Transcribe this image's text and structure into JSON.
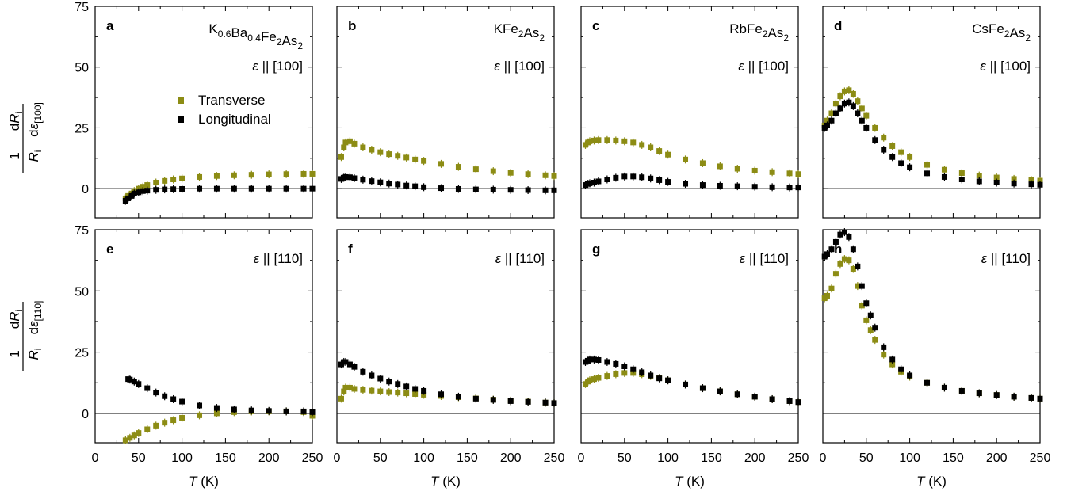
{
  "figure": {
    "ylabel_top": "1/R_i dR_i/dε_[100]",
    "ylabel_bottom": "1/R_i dR_i/dε_[110]",
    "xlabel": "T (K)",
    "legend": [
      "Transverse",
      "Longitudinal"
    ],
    "colors": {
      "transverse": "#8c8c14",
      "longitudinal": "#000000"
    }
  },
  "chart_data": [
    {
      "type": "scatter",
      "panel": "a",
      "compound": "K0.6Ba0.4Fe2As2",
      "strain": "ε || [100]",
      "xlim": [
        0,
        250
      ],
      "ylim": [
        -12,
        75
      ],
      "series": [
        {
          "name": "Transverse",
          "x": [
            35,
            38,
            42,
            45,
            50,
            55,
            60,
            70,
            80,
            90,
            100,
            120,
            140,
            160,
            180,
            200,
            220,
            240,
            250
          ],
          "y": [
            -4,
            -3,
            -2,
            -1,
            0,
            0.8,
            1.5,
            2.5,
            3.2,
            3.8,
            4.2,
            4.8,
            5.2,
            5.5,
            5.7,
            5.9,
            6,
            6.1,
            6.1
          ]
        },
        {
          "name": "Longitudinal",
          "x": [
            35,
            38,
            42,
            45,
            50,
            55,
            60,
            70,
            80,
            90,
            100,
            120,
            140,
            160,
            180,
            200,
            220,
            240,
            250
          ],
          "y": [
            -5,
            -4,
            -3,
            -2,
            -1.5,
            -1,
            -0.8,
            -0.5,
            -0.3,
            -0.2,
            -0.1,
            0,
            0,
            0,
            0,
            0,
            0,
            0,
            0
          ]
        }
      ]
    },
    {
      "type": "scatter",
      "panel": "b",
      "compound": "KFe2As2",
      "strain": "ε || [100]",
      "xlim": [
        0,
        250
      ],
      "ylim": [
        -12,
        75
      ],
      "series": [
        {
          "name": "Transverse",
          "x": [
            5,
            8,
            10,
            15,
            20,
            30,
            40,
            50,
            60,
            70,
            80,
            90,
            100,
            120,
            140,
            160,
            180,
            200,
            220,
            240,
            250
          ],
          "y": [
            13,
            17,
            19,
            19.5,
            18.5,
            17,
            16,
            15,
            14.2,
            13.5,
            12.8,
            12,
            11.4,
            10.2,
            9,
            8,
            7.2,
            6.5,
            6,
            5.5,
            5.2
          ]
        },
        {
          "name": "Longitudinal",
          "x": [
            5,
            8,
            10,
            15,
            20,
            30,
            40,
            50,
            60,
            70,
            80,
            90,
            100,
            120,
            140,
            160,
            180,
            200,
            220,
            240,
            250
          ],
          "y": [
            4,
            4.5,
            4.8,
            4.7,
            4.3,
            3.7,
            3.1,
            2.6,
            2.1,
            1.7,
            1.3,
            1,
            0.6,
            0.2,
            -0.1,
            -0.3,
            -0.4,
            -0.5,
            -0.6,
            -0.7,
            -0.7
          ]
        }
      ]
    },
    {
      "type": "scatter",
      "panel": "c",
      "compound": "RbFe2As2",
      "strain": "ε || [100]",
      "xlim": [
        0,
        250
      ],
      "ylim": [
        -12,
        75
      ],
      "series": [
        {
          "name": "Transverse",
          "x": [
            5,
            8,
            10,
            15,
            20,
            30,
            40,
            50,
            60,
            70,
            80,
            90,
            100,
            120,
            140,
            160,
            180,
            200,
            220,
            240,
            250
          ],
          "y": [
            18,
            19,
            19.5,
            19.8,
            20,
            20,
            19.8,
            19.5,
            19,
            18,
            17,
            15.5,
            14,
            12,
            10.5,
            9.2,
            8.2,
            7.4,
            6.8,
            6.3,
            6
          ]
        },
        {
          "name": "Longitudinal",
          "x": [
            5,
            8,
            10,
            15,
            20,
            30,
            40,
            50,
            60,
            70,
            80,
            90,
            100,
            120,
            140,
            160,
            180,
            200,
            220,
            240,
            250
          ],
          "y": [
            1.5,
            2,
            2.2,
            2.5,
            3,
            3.8,
            4.5,
            5,
            5,
            4.7,
            4.2,
            3.5,
            2.8,
            2,
            1.5,
            1.2,
            1,
            0.8,
            0.6,
            0.5,
            0.5
          ]
        }
      ]
    },
    {
      "type": "scatter",
      "panel": "d",
      "compound": "CsFe2As2",
      "strain": "ε || [100]",
      "xlim": [
        0,
        250
      ],
      "ylim": [
        -12,
        75
      ],
      "series": [
        {
          "name": "Transverse",
          "x": [
            2,
            5,
            10,
            15,
            20,
            25,
            30,
            35,
            40,
            45,
            50,
            60,
            70,
            80,
            90,
            100,
            120,
            140,
            160,
            180,
            200,
            220,
            240,
            250
          ],
          "y": [
            26,
            28,
            31,
            35,
            38,
            40,
            40.5,
            39,
            36,
            33,
            30,
            25,
            21,
            17.5,
            15,
            13,
            9.8,
            7.8,
            6.4,
            5.4,
            4.6,
            4,
            3.5,
            3.3
          ]
        },
        {
          "name": "Longitudinal",
          "x": [
            2,
            5,
            10,
            15,
            20,
            25,
            30,
            35,
            40,
            45,
            50,
            60,
            70,
            80,
            90,
            100,
            120,
            140,
            160,
            180,
            200,
            220,
            240,
            250
          ],
          "y": [
            25,
            26,
            28,
            31,
            33,
            35,
            35.5,
            34,
            31,
            28,
            25,
            20,
            16,
            13,
            10.5,
            8.8,
            6.3,
            4.8,
            3.8,
            3,
            2.5,
            2.1,
            1.8,
            1.6
          ]
        }
      ]
    },
    {
      "type": "scatter",
      "panel": "e",
      "compound": "",
      "strain": "ε || [110]",
      "xlim": [
        0,
        250
      ],
      "ylim": [
        -12,
        75
      ],
      "series": [
        {
          "name": "Transverse",
          "x": [
            35,
            40,
            45,
            50,
            60,
            70,
            80,
            90,
            100,
            120,
            140,
            160,
            180,
            200,
            220,
            240,
            250
          ],
          "y": [
            -11,
            -10,
            -9,
            -8,
            -6.5,
            -5,
            -3.8,
            -2.8,
            -1.8,
            -0.8,
            0,
            0.5,
            0.8,
            0.8,
            0.8,
            0.5,
            -1
          ]
        },
        {
          "name": "Longitudinal",
          "x": [
            38,
            40,
            45,
            50,
            60,
            70,
            80,
            90,
            100,
            120,
            140,
            160,
            180,
            200,
            220,
            240,
            250
          ],
          "y": [
            14,
            13.8,
            13,
            12,
            10.3,
            8.5,
            7,
            5.8,
            4.8,
            3.2,
            2.2,
            1.6,
            1.2,
            1,
            0.8,
            0.8,
            0.5
          ]
        }
      ]
    },
    {
      "type": "scatter",
      "panel": "f",
      "compound": "",
      "strain": "ε || [110]",
      "xlim": [
        0,
        250
      ],
      "ylim": [
        -12,
        75
      ],
      "series": [
        {
          "name": "Transverse",
          "x": [
            5,
            8,
            10,
            15,
            20,
            30,
            40,
            50,
            60,
            70,
            80,
            90,
            100,
            120,
            140,
            160,
            180,
            200,
            220,
            240,
            250
          ],
          "y": [
            6,
            9,
            10.5,
            10.5,
            10,
            9.6,
            9.3,
            9,
            8.7,
            8.5,
            8.2,
            7.9,
            7.6,
            7.1,
            6.6,
            6.1,
            5.6,
            5.2,
            4.8,
            4.4,
            4.2
          ]
        },
        {
          "name": "Longitudinal",
          "x": [
            5,
            8,
            10,
            15,
            20,
            30,
            40,
            50,
            60,
            70,
            80,
            90,
            100,
            120,
            140,
            160,
            180,
            200,
            220,
            240,
            250
          ],
          "y": [
            20,
            21,
            21,
            20,
            19,
            17,
            15.5,
            14.2,
            13,
            12,
            11,
            10,
            9.2,
            7.8,
            6.8,
            6,
            5.5,
            5,
            4.7,
            4.4,
            4.2
          ]
        }
      ]
    },
    {
      "type": "scatter",
      "panel": "g",
      "compound": "",
      "strain": "ε || [110]",
      "xlim": [
        0,
        250
      ],
      "ylim": [
        -12,
        75
      ],
      "series": [
        {
          "name": "Transverse",
          "x": [
            5,
            8,
            10,
            15,
            20,
            30,
            40,
            50,
            60,
            70,
            80,
            90,
            100,
            120,
            140,
            160,
            180,
            200,
            220,
            240,
            250
          ],
          "y": [
            12,
            13,
            13.5,
            14,
            14.5,
            15.3,
            16,
            16.5,
            16.5,
            16,
            15.3,
            14.4,
            13.5,
            11.8,
            10.3,
            9,
            7.8,
            6.8,
            5.8,
            5,
            4.6
          ]
        },
        {
          "name": "Longitudinal",
          "x": [
            5,
            8,
            10,
            15,
            20,
            30,
            40,
            50,
            60,
            70,
            80,
            90,
            100,
            120,
            140,
            160,
            180,
            200,
            220,
            240,
            250
          ],
          "y": [
            21,
            21.5,
            22,
            22,
            21.8,
            21,
            20.2,
            19.2,
            18,
            16.8,
            15.5,
            14.3,
            13.5,
            11.8,
            10.3,
            9,
            7.8,
            6.8,
            5.8,
            5,
            4.6
          ]
        }
      ]
    },
    {
      "type": "scatter",
      "panel": "h",
      "compound": "",
      "strain": "ε || [110]",
      "xlim": [
        0,
        250
      ],
      "ylim": [
        -12,
        75
      ],
      "series": [
        {
          "name": "Transverse",
          "x": [
            2,
            5,
            10,
            15,
            20,
            25,
            30,
            35,
            40,
            45,
            50,
            55,
            60,
            70,
            80,
            90,
            100,
            120,
            140,
            160,
            180,
            200,
            220,
            240,
            250
          ],
          "y": [
            47,
            48,
            51,
            57,
            61,
            63,
            62.5,
            59,
            52,
            44,
            38,
            34,
            30,
            24,
            20,
            17,
            15,
            12.5,
            10.5,
            9.2,
            8.2,
            7.5,
            6.8,
            6.3,
            6
          ]
        },
        {
          "name": "Longitudinal",
          "x": [
            2,
            5,
            10,
            15,
            20,
            25,
            30,
            35,
            40,
            45,
            50,
            55,
            60,
            70,
            80,
            90,
            100,
            120,
            140,
            160,
            180,
            200,
            220,
            240,
            250
          ],
          "y": [
            64,
            65,
            67,
            70,
            73,
            74,
            72,
            67,
            60,
            52,
            45,
            40,
            35,
            27,
            22,
            18,
            15.5,
            12.5,
            10.5,
            9.2,
            8.2,
            7.5,
            6.8,
            6.3,
            6
          ]
        }
      ]
    }
  ]
}
